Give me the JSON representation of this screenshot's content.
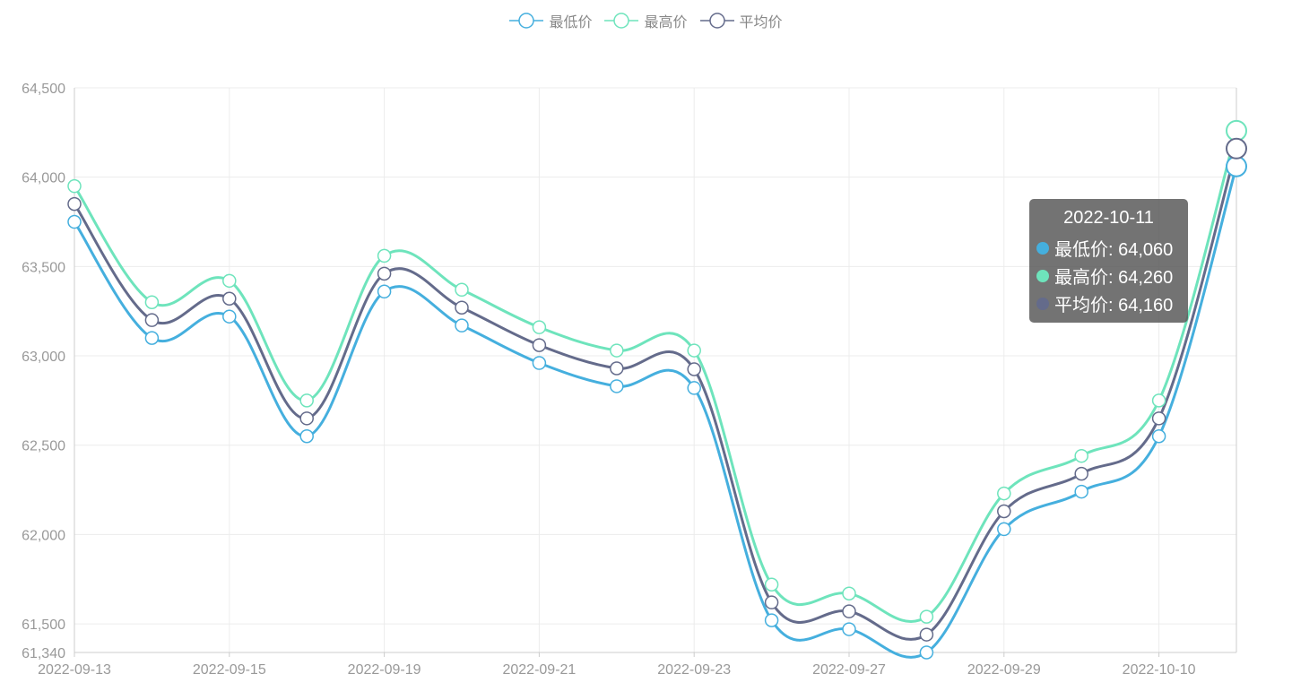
{
  "legend": [
    {
      "name": "最低价",
      "color": "#45afde"
    },
    {
      "name": "最高价",
      "color": "#6ee4bc"
    },
    {
      "name": "平均价",
      "color": "#646b8b"
    }
  ],
  "tooltip": {
    "title": "2022-10-11",
    "rows": [
      {
        "label": "最低价: 64,060",
        "color": "#45afde"
      },
      {
        "label": "最高价: 64,260",
        "color": "#6ee4bc"
      },
      {
        "label": "平均价: 64,160",
        "color": "#646b8b"
      }
    ]
  },
  "chart_data": {
    "type": "line",
    "x": [
      "2022-09-13",
      "2022-09-14",
      "2022-09-15",
      "2022-09-16",
      "2022-09-19",
      "2022-09-20",
      "2022-09-21",
      "2022-09-22",
      "2022-09-23",
      "2022-09-26",
      "2022-09-27",
      "2022-09-28",
      "2022-09-29",
      "2022-09-30",
      "2022-10-10",
      "2022-10-11"
    ],
    "xtick_labels": [
      "2022-09-13",
      "2022-09-15",
      "2022-09-19",
      "2022-09-21",
      "2022-09-23",
      "2022-09-27",
      "2022-09-29",
      "2022-10-10"
    ],
    "series": [
      {
        "name": "最低价",
        "color": "#45afde",
        "values": [
          63750,
          63100,
          63220,
          62550,
          63360,
          63170,
          62960,
          62830,
          62820,
          61520,
          61470,
          61340,
          62030,
          62240,
          62550,
          64060
        ]
      },
      {
        "name": "最高价",
        "color": "#6ee4bc",
        "values": [
          63950,
          63300,
          63420,
          62750,
          63560,
          63370,
          63160,
          63030,
          63030,
          61720,
          61670,
          61540,
          62230,
          62440,
          62750,
          64260
        ]
      },
      {
        "name": "平均价",
        "color": "#646b8b",
        "values": [
          63850,
          63200,
          63320,
          62650,
          63460,
          63270,
          63060,
          62930,
          62925,
          61620,
          61570,
          61440,
          62130,
          62340,
          62650,
          64160
        ]
      }
    ],
    "yticks": [
      61340,
      61500,
      62000,
      62500,
      63000,
      63500,
      64000,
      64500
    ],
    "ytick_labels": [
      "61,340",
      "61,500",
      "62,000",
      "62,500",
      "63,000",
      "63,500",
      "64,000",
      "64,500"
    ],
    "ylim": [
      61340,
      64500
    ],
    "xlabel": "",
    "ylabel": "",
    "grid": true,
    "legend_position": "top-center",
    "highlighted_index": 15
  }
}
